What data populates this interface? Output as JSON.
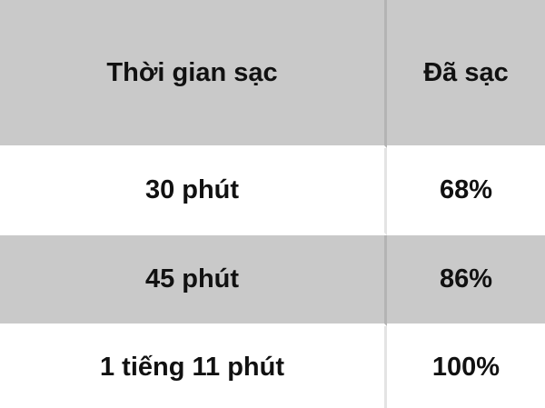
{
  "table": {
    "headers": [
      "Thời gian sạc",
      "Đã sạc"
    ],
    "rows": [
      [
        "30 phút",
        "68%"
      ],
      [
        "45 phút",
        "86%"
      ],
      [
        "1 tiếng 11 phút",
        "100%"
      ]
    ]
  },
  "colors": {
    "header_bg": "#c9c9c9",
    "alt_row_bg": "#c9c9c9",
    "row_bg": "#ffffff"
  }
}
